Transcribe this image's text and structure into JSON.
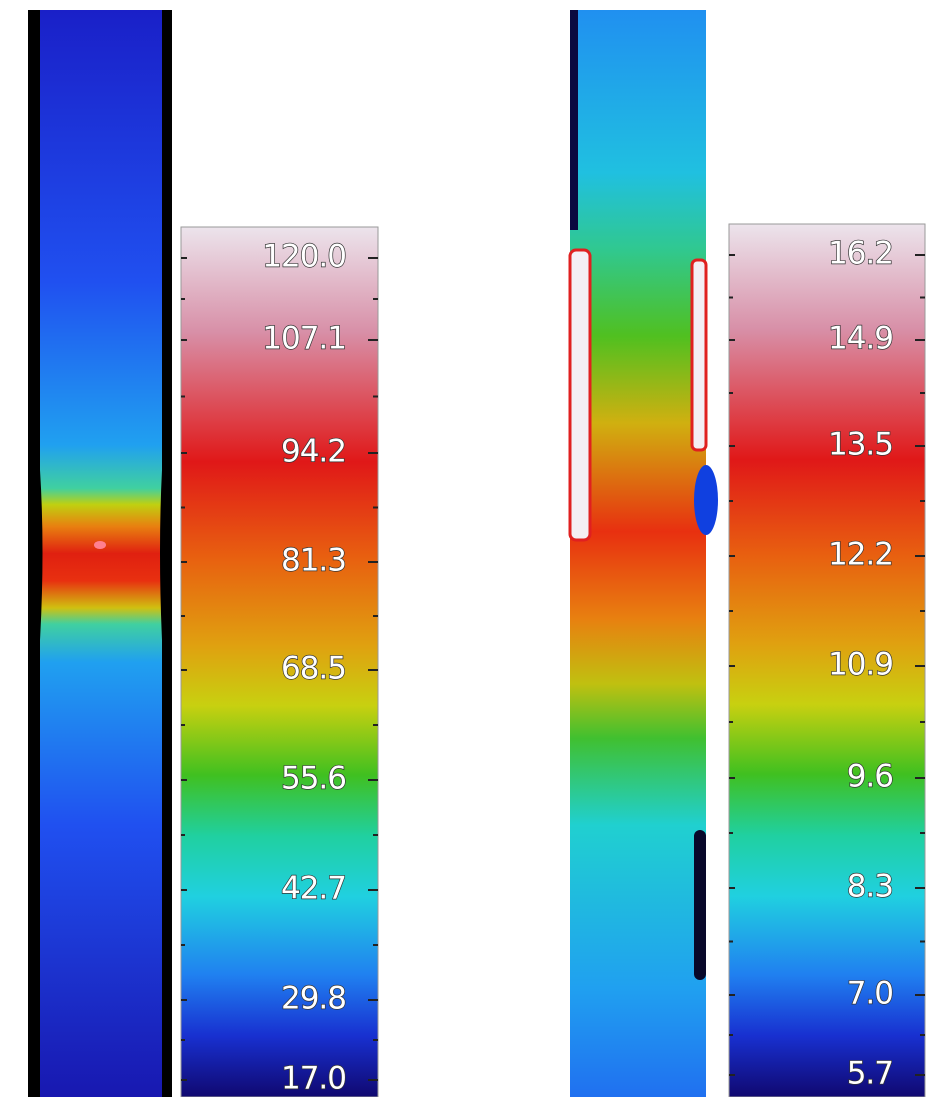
{
  "left_panel": {
    "scale_labels": [
      "120.0",
      "107.1",
      "94.2",
      "81.3",
      "68.5",
      "55.6",
      "42.7",
      "29.8",
      "17.0"
    ]
  },
  "right_panel": {
    "scale_labels": [
      "16.2",
      "14.9",
      "13.5",
      "12.2",
      "10.9",
      "9.6",
      "8.3",
      "7.0",
      "5.7"
    ]
  }
}
